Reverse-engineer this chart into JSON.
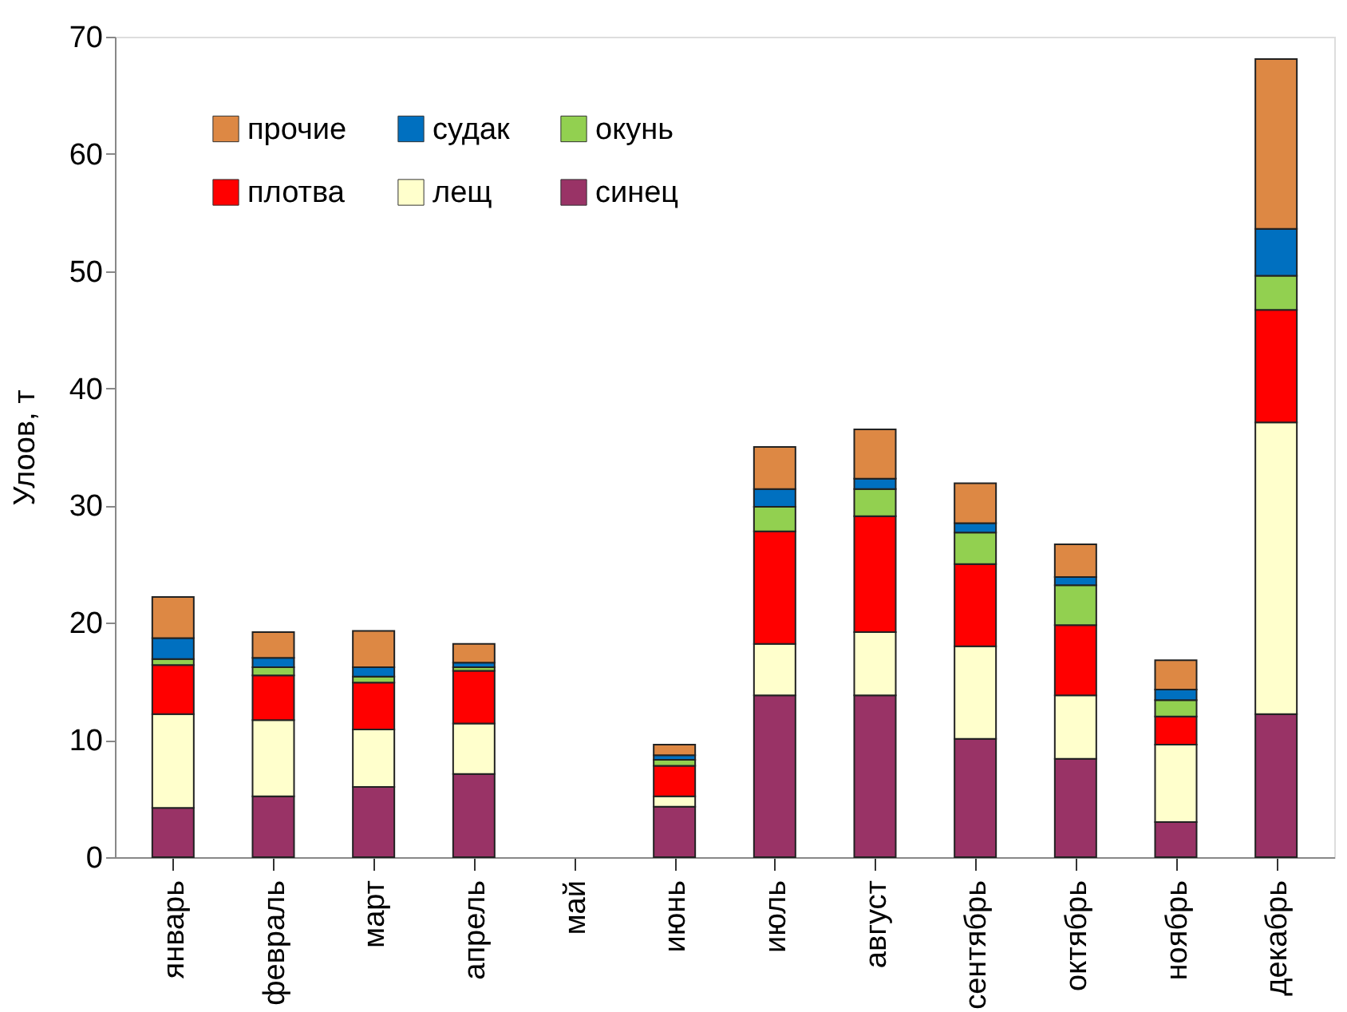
{
  "chart_data": {
    "type": "bar",
    "stacked": true,
    "ylabel": "Улоов, т",
    "categories": [
      "январь",
      "февраль",
      "март",
      "апрель",
      "май",
      "июнь",
      "июль",
      "август",
      "сентябрь",
      "октябрь",
      "ноябрь",
      "декабрь"
    ],
    "ylim": [
      0,
      70
    ],
    "yticks": [
      0,
      10,
      20,
      30,
      40,
      50,
      60,
      70
    ],
    "grid": false,
    "legend": "top left",
    "series": [
      {
        "name": "синец",
        "color": "#993366",
        "values": [
          4.2,
          5.2,
          6.0,
          7.1,
          null,
          4.3,
          13.8,
          13.8,
          10.1,
          8.4,
          3.0,
          12.2
        ]
      },
      {
        "name": "лещ",
        "color": "#ffffcc",
        "values": [
          8.0,
          6.5,
          4.9,
          4.3,
          null,
          0.9,
          4.4,
          5.4,
          7.9,
          5.4,
          6.6,
          24.9
        ]
      },
      {
        "name": "плотва",
        "color": "#ff0000",
        "values": [
          4.2,
          3.8,
          4.0,
          4.5,
          null,
          2.6,
          9.6,
          9.9,
          7.0,
          6.0,
          2.4,
          9.6
        ]
      },
      {
        "name": "окунь",
        "color": "#92d050",
        "values": [
          0.5,
          0.7,
          0.5,
          0.3,
          null,
          0.5,
          2.1,
          2.3,
          2.7,
          3.4,
          1.4,
          2.9
        ]
      },
      {
        "name": "судак",
        "color": "#0070c0",
        "values": [
          1.8,
          0.8,
          0.8,
          0.4,
          null,
          0.4,
          1.5,
          0.9,
          0.8,
          0.7,
          0.9,
          4.0
        ]
      },
      {
        "name": "прочие",
        "color": "#dd8844",
        "values": [
          3.5,
          2.2,
          3.1,
          1.6,
          null,
          0.9,
          3.6,
          4.2,
          3.4,
          2.8,
          2.5,
          14.5
        ]
      }
    ]
  }
}
